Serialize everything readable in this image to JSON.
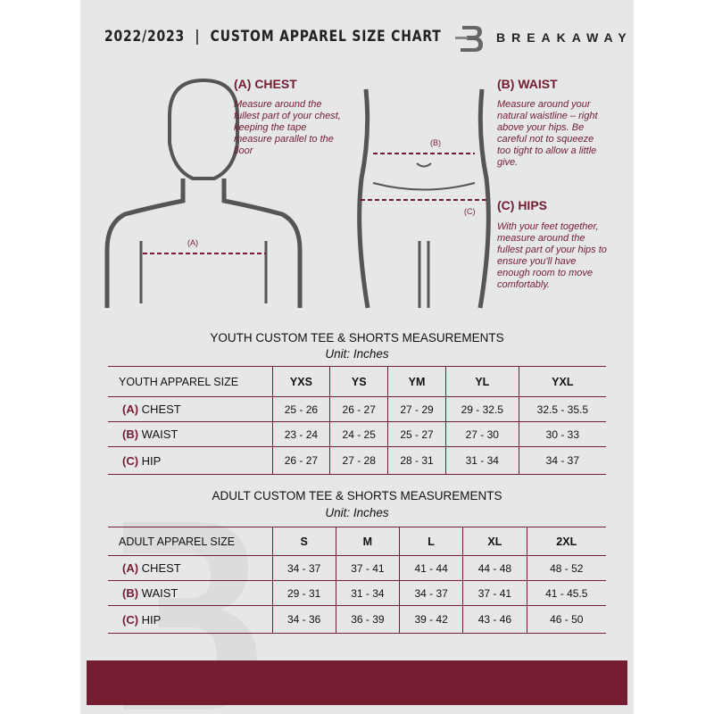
{
  "header": {
    "title": "2022/2023  |  CUSTOM APPAREL SIZE CHART",
    "brand": "BREAKAWAY",
    "logo_letter": "B"
  },
  "chest": {
    "heading": "(A) CHEST",
    "text": "Measure around the fullest part of your chest, keeping the tape measure parallel to the floor",
    "marker": "(A)"
  },
  "waist": {
    "heading": "(B) WAIST",
    "text": "Measure around your natural waistline – right above your hips. Be careful not to squeeze too tight to allow a little give.",
    "marker": "(B)"
  },
  "hips": {
    "heading": "(C) HIPS",
    "text": "With your feet together, measure around the fullest part of your hips to ensure you'll have enough room to move comfortably.",
    "marker": "(C)"
  },
  "youth": {
    "title": "YOUTH CUSTOM TEE & SHORTS MEASUREMENTS",
    "unit": "Unit: Inches",
    "size_label": "YOUTH APPAREL SIZE",
    "sizes": [
      "YXS",
      "YS",
      "YM",
      "YL",
      "YXL"
    ],
    "rows": [
      {
        "letter": "(A)",
        "name": "CHEST",
        "values": [
          "25 - 26",
          "26 - 27",
          "27 - 29",
          "29 - 32.5",
          "32.5 - 35.5"
        ]
      },
      {
        "letter": "(B)",
        "name": "WAIST",
        "values": [
          "23 - 24",
          "24 - 25",
          "25 - 27",
          "27 - 30",
          "30 - 33"
        ]
      },
      {
        "letter": "(C)",
        "name": "HIP",
        "values": [
          "26 - 27",
          "27 - 28",
          "28 - 31",
          "31 - 34",
          "34 - 37"
        ]
      }
    ]
  },
  "adult": {
    "title": "ADULT CUSTOM TEE & SHORTS MEASUREMENTS",
    "unit": "Unit: Inches",
    "size_label": "ADULT APPAREL SIZE",
    "sizes": [
      "S",
      "M",
      "L",
      "XL",
      "2XL"
    ],
    "rows": [
      {
        "letter": "(A)",
        "name": "CHEST",
        "values": [
          "34 - 37",
          "37 - 41",
          "41 - 44",
          "44 - 48",
          "48 - 52"
        ]
      },
      {
        "letter": "(B)",
        "name": "WAIST",
        "values": [
          "29 - 31",
          "31 - 34",
          "34 - 37",
          "37 - 41",
          "41 - 45.5"
        ]
      },
      {
        "letter": "(C)",
        "name": "HIP",
        "values": [
          "34 - 36",
          "36 - 39",
          "39 - 42",
          "43 - 46",
          "46 - 50"
        ]
      }
    ]
  },
  "colors": {
    "accent": "#741c30",
    "background": "#e6e7e8"
  }
}
